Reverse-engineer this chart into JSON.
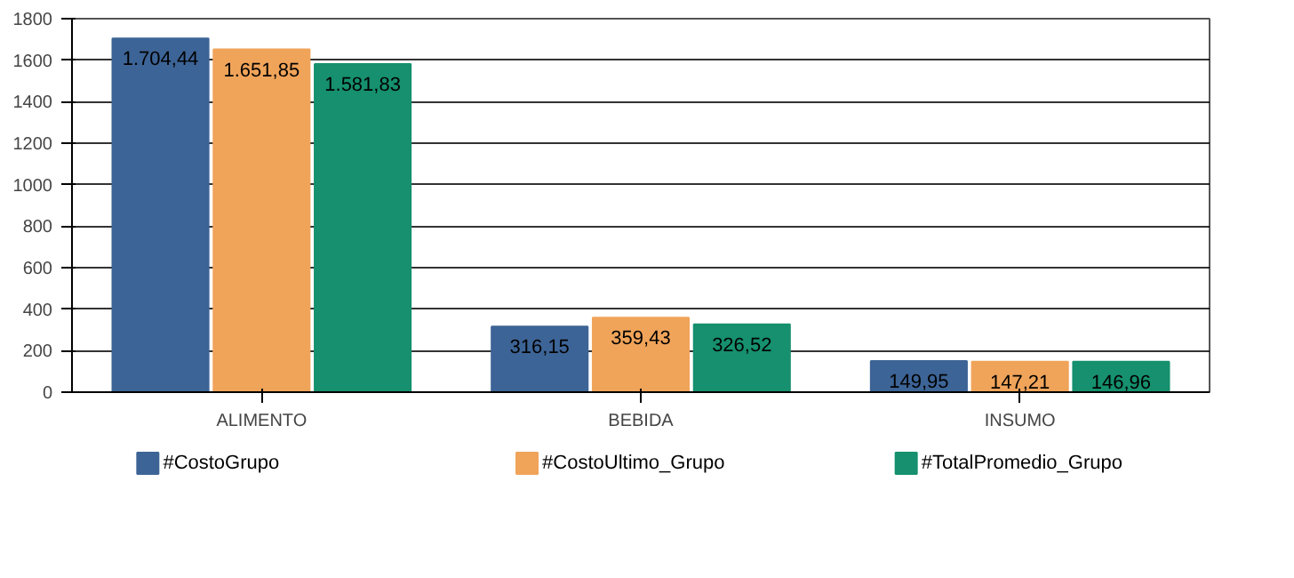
{
  "chart_data": {
    "type": "bar",
    "categories": [
      "ALIMENTO",
      "BEBIDA",
      "INSUMO"
    ],
    "series": [
      {
        "name": "#CostoGrupo",
        "color": "#3d6496",
        "values": [
          1704.44,
          316.15,
          149.95
        ],
        "value_labels": [
          "1.704,44",
          "316,15",
          "149,95"
        ]
      },
      {
        "name": "#CostoUltimo_Grupo",
        "color": "#f0a45a",
        "values": [
          1651.85,
          359.43,
          147.21
        ],
        "value_labels": [
          "1.651,85",
          "359,43",
          "147,21"
        ]
      },
      {
        "name": "#TotalPromedio_Grupo",
        "color": "#16906e",
        "values": [
          1581.83,
          326.52,
          146.96
        ],
        "value_labels": [
          "1.581,83",
          "326,52",
          "146,96"
        ]
      }
    ],
    "ylim": [
      0,
      1800
    ],
    "yticks": [
      0,
      200,
      400,
      600,
      800,
      1000,
      1200,
      1400,
      1600,
      1800
    ],
    "grid": "y",
    "legend": "bottom"
  }
}
